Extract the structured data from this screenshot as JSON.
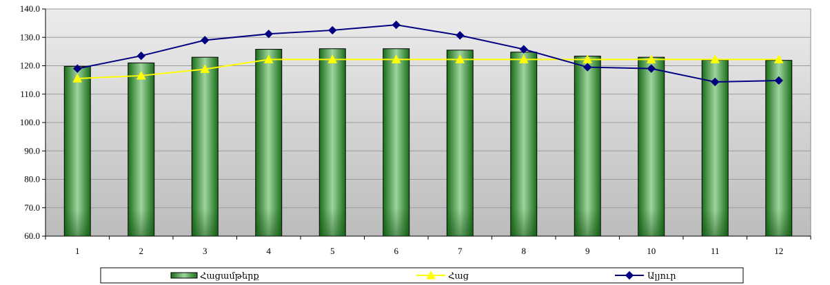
{
  "chart_data": {
    "type": "bar",
    "categories": [
      "1",
      "2",
      "3",
      "4",
      "5",
      "6",
      "7",
      "8",
      "9",
      "10",
      "11",
      "12"
    ],
    "ylim": [
      60,
      140
    ],
    "yticks": [
      "60.0",
      "70.0",
      "80.0",
      "90.0",
      "100.0",
      "110.0",
      "120.0",
      "130.0",
      "140.0"
    ],
    "grid": "horizontal",
    "legend": "bottom",
    "series": [
      {
        "name": "Հացամթերք",
        "type": "bar",
        "color": "#1f7a1f",
        "values": [
          119.8,
          121.0,
          123.0,
          125.8,
          126.0,
          126.0,
          125.5,
          124.8,
          123.4,
          123.0,
          122.0,
          121.9
        ]
      },
      {
        "name": "Հաց",
        "type": "line",
        "marker": "triangle",
        "color": "#ffff00",
        "values": [
          115.5,
          116.5,
          118.8,
          122.2,
          122.2,
          122.2,
          122.2,
          122.2,
          122.2,
          122.2,
          122.2,
          122.2
        ]
      },
      {
        "name": "Ալյուր",
        "type": "line",
        "marker": "diamond",
        "color": "#000080",
        "values": [
          119.0,
          123.5,
          129.0,
          131.2,
          132.5,
          134.4,
          130.7,
          125.8,
          119.5,
          119.0,
          114.3,
          114.8
        ]
      }
    ]
  }
}
